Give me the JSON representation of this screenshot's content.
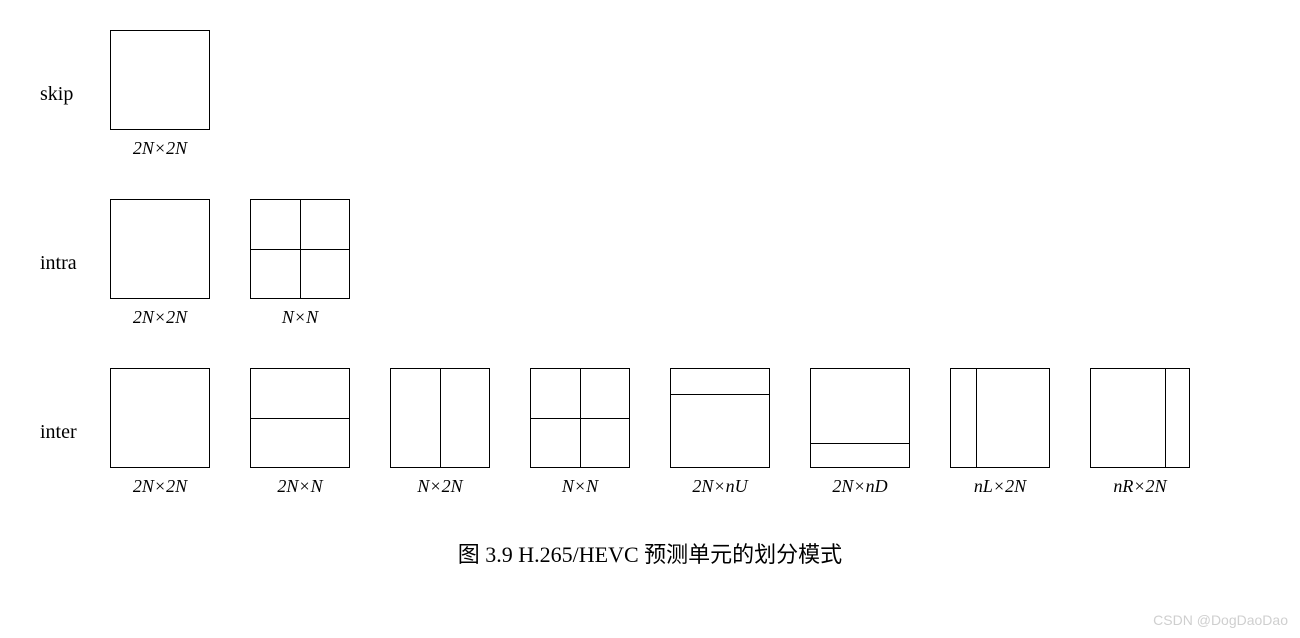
{
  "box_size": 100,
  "box_border_color": "#000000",
  "box_border_width": 1.5,
  "background_color": "#ffffff",
  "label_fontsize": 18,
  "row_label_fontsize": 20,
  "caption_fontsize": 22,
  "row_gap": 40,
  "partition_gap": 40,
  "rows": [
    {
      "label": "skip",
      "items": [
        {
          "name": "skip-2Nx2N",
          "label_html": "2<i>N</i>×2<i>N</i>",
          "h_splits": [],
          "v_splits": []
        }
      ]
    },
    {
      "label": "intra",
      "items": [
        {
          "name": "intra-2Nx2N",
          "label_html": "2<i>N</i>×2<i>N</i>",
          "h_splits": [],
          "v_splits": []
        },
        {
          "name": "intra-NxN",
          "label_html": "<i>N</i>×<i>N</i>",
          "h_splits": [
            0.5
          ],
          "v_splits": [
            0.5
          ]
        }
      ]
    },
    {
      "label": "inter",
      "items": [
        {
          "name": "inter-2Nx2N",
          "label_html": "2<i>N</i>×2<i>N</i>",
          "h_splits": [],
          "v_splits": []
        },
        {
          "name": "inter-2NxN",
          "label_html": "2<i>N</i>×<i>N</i>",
          "h_splits": [
            0.5
          ],
          "v_splits": []
        },
        {
          "name": "inter-Nx2N",
          "label_html": "<i>N</i>×2<i>N</i>",
          "h_splits": [],
          "v_splits": [
            0.5
          ]
        },
        {
          "name": "inter-NxN",
          "label_html": "<i>N</i>×<i>N</i>",
          "h_splits": [
            0.5
          ],
          "v_splits": [
            0.5
          ]
        },
        {
          "name": "inter-2NxnU",
          "label_html": "2<i>N</i>×<i>nU</i>",
          "h_splits": [
            0.25
          ],
          "v_splits": []
        },
        {
          "name": "inter-2NxnD",
          "label_html": "2<i>N</i>×<i>nD</i>",
          "h_splits": [
            0.75
          ],
          "v_splits": []
        },
        {
          "name": "inter-nLx2N",
          "label_html": "<i>nL</i>×2<i>N</i>",
          "h_splits": [],
          "v_splits": [
            0.25
          ]
        },
        {
          "name": "inter-nRx2N",
          "label_html": "<i>nR</i>×2<i>N</i>",
          "h_splits": [],
          "v_splits": [
            0.75
          ]
        }
      ]
    }
  ],
  "caption": "图 3.9   H.265/HEVC 预测单元的划分模式",
  "watermark": "CSDN @DogDaoDao"
}
